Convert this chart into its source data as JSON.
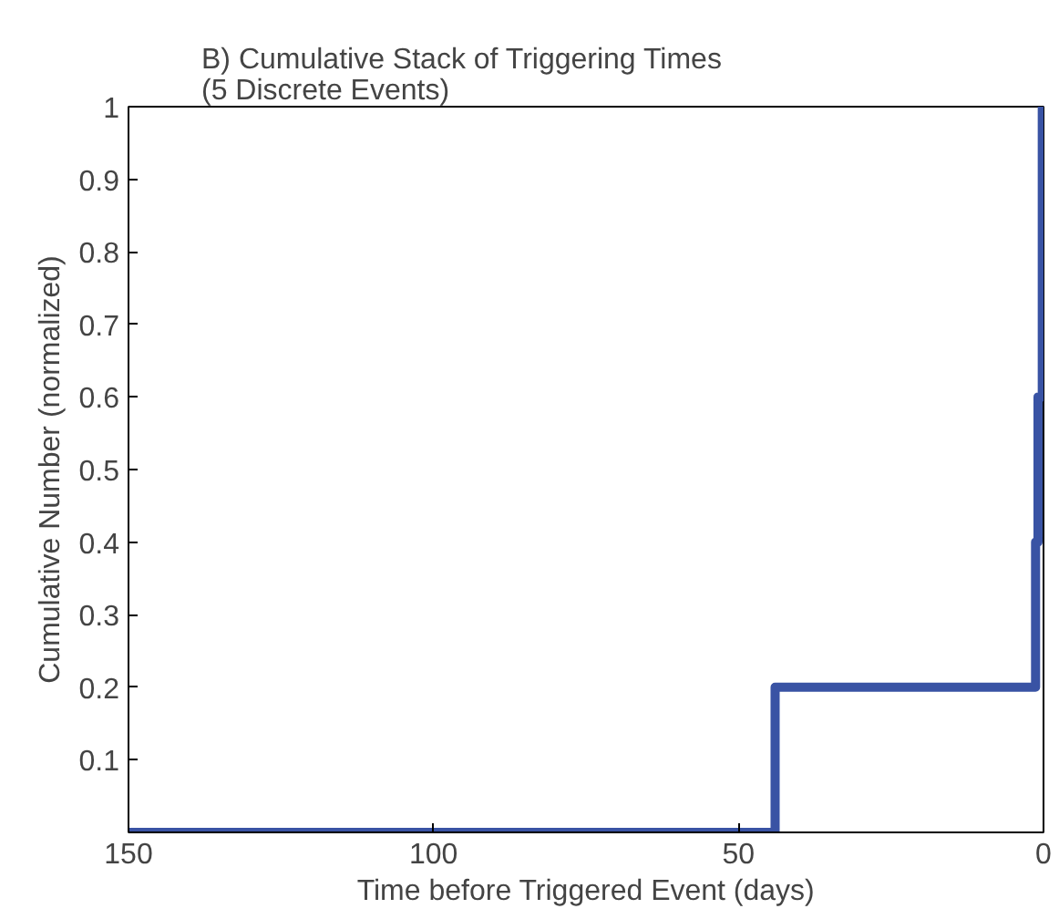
{
  "chart_data": {
    "type": "step",
    "title": "B) Cumulative Stack of Triggering Times\n(5 Discrete Events)",
    "xlabel": "Time before Triggered Event (days)",
    "ylabel": "Cumulative Number (normalized)",
    "x": [
      150,
      44,
      1.3,
      0.9,
      0.2
    ],
    "series": [
      {
        "color": "#3953a4",
        "values": [
          0,
          0.2,
          0.4,
          0.6,
          1.0
        ]
      }
    ],
    "xlim": [
      150,
      0
    ],
    "ylim": [
      0,
      1
    ],
    "xticks": [
      150,
      100,
      50,
      0
    ],
    "yticks": [
      0.1,
      0.2,
      0.3,
      0.4,
      0.5,
      0.6,
      0.7,
      0.8,
      0.9,
      1
    ],
    "grid": false
  }
}
